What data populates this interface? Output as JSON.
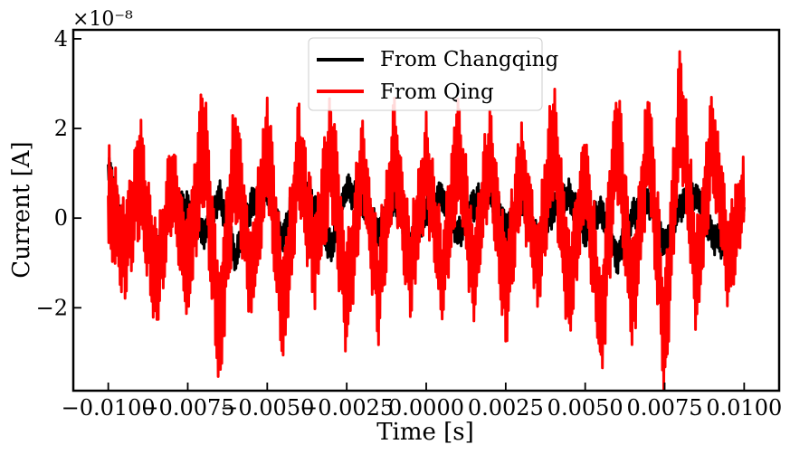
{
  "chart_data": {
    "type": "line",
    "title": "",
    "xlabel": "Time [s]",
    "ylabel": "Current [A]",
    "y_offset_label": "×10⁻⁸",
    "y_scale_exponent": -8,
    "xlim": [
      -0.0111,
      0.0111
    ],
    "ylim": [
      -3.85e-08,
      4.2e-08
    ],
    "x_ticks": [
      -0.01,
      -0.0075,
      -0.005,
      -0.0025,
      0.0,
      0.0025,
      0.005,
      0.0075,
      0.01
    ],
    "x_tick_labels": [
      "−0.0100",
      "−0.0075",
      "−0.0050",
      "−0.0025",
      "0.0000",
      "0.0025",
      "0.0050",
      "0.0075",
      "0.0100"
    ],
    "y_ticks": [
      -2e-08,
      0,
      2e-08,
      4e-08
    ],
    "y_tick_labels": [
      "−2",
      "0",
      "2",
      "4"
    ],
    "grid": false,
    "legend_position": "top-center",
    "series": [
      {
        "name": "From Changqing",
        "color": "#000000",
        "x": [
          -0.01,
          -0.0095,
          -0.009,
          -0.0085,
          -0.008,
          -0.0075,
          -0.007,
          -0.0065,
          -0.006,
          -0.0055,
          -0.005,
          -0.0045,
          -0.004,
          -0.0035,
          -0.003,
          -0.0025,
          -0.002,
          -0.0015,
          -0.001,
          -0.0005,
          0.0,
          0.0005,
          0.001,
          0.0015,
          0.002,
          0.0025,
          0.003,
          0.0035,
          0.004,
          0.0045,
          0.005,
          0.0055,
          0.006,
          0.0065,
          0.007,
          0.0075,
          0.008,
          0.0085,
          0.009,
          0.0095,
          0.01
        ],
        "values": [
          1.2e-08,
          -3e-09,
          6e-09,
          -8e-09,
          4e-09,
          2e-09,
          -4e-09,
          5e-09,
          -9e-09,
          3e-09,
          6e-09,
          -5e-09,
          9e-09,
          2e-09,
          -7e-09,
          7e-09,
          3e-09,
          -3e-09,
          4e-09,
          -6e-09,
          1e-09,
          5e-09,
          -4e-09,
          3e-09,
          6e-09,
          -2e-09,
          4e-09,
          -5e-09,
          2e-09,
          5e-09,
          -3e-09,
          2e-09,
          -9e-09,
          1e-09,
          4e-09,
          -6e-09,
          3e-09,
          5e-09,
          -4e-09,
          -6e-09,
          3e-09
        ],
        "envelope": [
          4e-09,
          4e-09,
          4e-09,
          4e-09,
          4e-09,
          4e-09,
          4e-09,
          4e-09,
          4e-09,
          4e-09,
          4e-09,
          4e-09,
          4e-09,
          4e-09,
          4e-09,
          4e-09,
          4e-09,
          4e-09,
          4e-09,
          4e-09,
          4e-09,
          4e-09,
          4e-09,
          4e-09,
          4e-09,
          4e-09,
          4e-09,
          4e-09,
          4e-09,
          4e-09,
          4e-09,
          4e-09,
          4e-09,
          4e-09,
          4e-09,
          4e-09,
          4e-09,
          4e-09,
          4e-09,
          4e-09,
          4e-09
        ]
      },
      {
        "name": "From Qing",
        "color": "#ff0000",
        "x": [
          -0.01,
          -0.0095,
          -0.009,
          -0.0085,
          -0.008,
          -0.0075,
          -0.007,
          -0.0065,
          -0.006,
          -0.0055,
          -0.005,
          -0.0045,
          -0.004,
          -0.0035,
          -0.003,
          -0.0025,
          -0.002,
          -0.0015,
          -0.001,
          -0.0005,
          0.0,
          0.0005,
          0.001,
          0.0015,
          0.002,
          0.0025,
          0.003,
          0.0035,
          0.004,
          0.0045,
          0.005,
          0.0055,
          0.006,
          0.0065,
          0.007,
          0.0075,
          0.008,
          0.0085,
          0.009,
          0.0095,
          0.01
        ],
        "values": [
          5e-09,
          -8e-09,
          1e-08,
          -1.5e-08,
          8e-09,
          -1.2e-08,
          1.8e-08,
          -2.6e-08,
          1.5e-08,
          -1.4e-08,
          1.6e-08,
          -2.2e-08,
          1.4e-08,
          -1e-08,
          1.6e-08,
          -1.8e-08,
          1.2e-08,
          -1.6e-08,
          1.5e-08,
          -1.2e-08,
          1.3e-08,
          -1.4e-08,
          1.6e-08,
          -1.3e-08,
          1.5e-08,
          -1.6e-08,
          1.2e-08,
          -1.1e-08,
          1.8e-08,
          -1.6e-08,
          1.2e-08,
          -2.5e-08,
          1.9e-08,
          -1.8e-08,
          1.9e-08,
          -2.8e-08,
          2.6e-08,
          -1.4e-08,
          1.8e-08,
          -1e-08,
          6e-09
        ],
        "envelope": [
          1.4e-08,
          1.3e-08,
          1.5e-08,
          1.4e-08,
          1.2e-08,
          1.5e-08,
          1.6e-08,
          1.7e-08,
          1.6e-08,
          1.2e-08,
          1.5e-08,
          1.5e-08,
          1.4e-08,
          1.2e-08,
          1.5e-08,
          1.5e-08,
          1.2e-08,
          1.3e-08,
          1.4e-08,
          1.2e-08,
          1.3e-08,
          1.3e-08,
          1.4e-08,
          1.2e-08,
          1.3e-08,
          1.4e-08,
          1.2e-08,
          1.2e-08,
          1.5e-08,
          1.4e-08,
          1.2e-08,
          1.5e-08,
          1.6e-08,
          1.5e-08,
          1.5e-08,
          1.6e-08,
          1.6e-08,
          1.4e-08,
          1.4e-08,
          1.3e-08,
          1e-08
        ]
      }
    ]
  }
}
